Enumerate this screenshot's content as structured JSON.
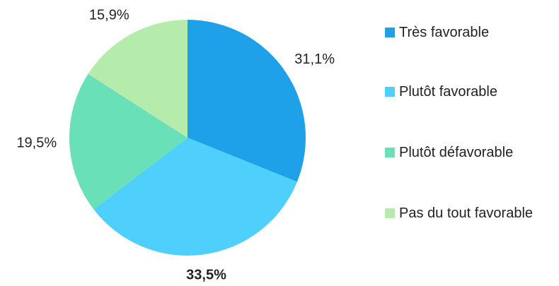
{
  "chart_data": {
    "type": "pie",
    "categories": [
      "Très favorable",
      "Plutôt favorable",
      "Plutôt défavorable",
      "Pas du tout favorable"
    ],
    "values": [
      31.1,
      33.5,
      19.5,
      15.9
    ],
    "value_labels": [
      "31,1%",
      "33,5%",
      "19,5%",
      "15,9%"
    ],
    "value_label_bold": [
      false,
      true,
      false,
      false
    ],
    "colors": [
      "#1ea1e8",
      "#4fcffc",
      "#6ae0b8",
      "#b5ebab"
    ],
    "legend": "right"
  }
}
